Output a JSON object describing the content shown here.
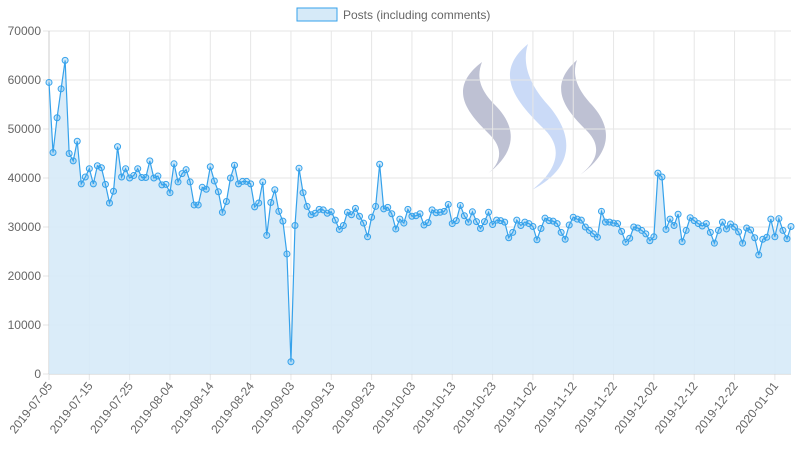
{
  "chart_data": {
    "type": "area",
    "legend": {
      "position": "top",
      "label": "Posts (including comments)"
    },
    "colors": {
      "line": "#36a2eb",
      "fill": "#d6eaf8",
      "grid": "#e6e6e6",
      "axis_text": "#666666"
    },
    "grid": true,
    "watermark": "steem-logo",
    "ylim": [
      0,
      70000
    ],
    "y_ticks": [
      "0",
      "10000",
      "20000",
      "30000",
      "40000",
      "50000",
      "60000",
      "70000"
    ],
    "x_start": "2019-07-05",
    "x_ticks": [
      "2019-07-05",
      "2019-07-15",
      "2019-07-25",
      "2019-08-04",
      "2019-08-14",
      "2019-08-24",
      "2019-09-03",
      "2019-09-13",
      "2019-09-23",
      "2019-10-03",
      "2019-10-13",
      "2019-10-23",
      "2019-11-02",
      "2019-11-12",
      "2019-11-22",
      "2019-12-02",
      "2019-12-12",
      "2019-12-22",
      "2020-01-01"
    ],
    "series": [
      {
        "name": "Posts (including comments)",
        "values": [
          59500,
          45200,
          52300,
          58200,
          64000,
          45000,
          43500,
          47500,
          38800,
          40200,
          41900,
          38800,
          42500,
          42100,
          38700,
          34900,
          37300,
          46400,
          40200,
          41900,
          40000,
          40500,
          41900,
          40100,
          40100,
          43500,
          40000,
          40400,
          38600,
          38700,
          37000,
          42900,
          39200,
          40900,
          41700,
          39200,
          34500,
          34500,
          38100,
          37700,
          42300,
          39400,
          37200,
          33000,
          35200,
          40000,
          42600,
          38800,
          39300,
          39300,
          38800,
          34100,
          34900,
          39200,
          28300,
          35000,
          37600,
          33200,
          31200,
          24500,
          2500,
          30300,
          42000,
          37000,
          34200,
          32500,
          32800,
          33600,
          33500,
          32800,
          33100,
          31400,
          29500,
          30300,
          33000,
          32500,
          33800,
          32200,
          30800,
          28000,
          32000,
          34200,
          42800,
          33700,
          34000,
          32700,
          29600,
          31600,
          30800,
          33600,
          32200,
          32300,
          32700,
          30400,
          30900,
          33500,
          32900,
          33000,
          33200,
          34600,
          30700,
          31300,
          34400,
          32300,
          31000,
          33100,
          31100,
          29700,
          31100,
          33000,
          30500,
          31400,
          31300,
          31000,
          27800,
          28900,
          31400,
          30300,
          31000,
          30700,
          30100,
          27400,
          29700,
          31800,
          31300,
          31200,
          30700,
          28900,
          27500,
          30400,
          32000,
          31600,
          31400,
          30000,
          29300,
          28600,
          27900,
          33200,
          31000,
          31000,
          30800,
          30700,
          29100,
          26900,
          27700,
          30000,
          29800,
          29300,
          28600,
          27200,
          28000,
          41000,
          40200,
          29500,
          31600,
          30300,
          32600,
          27000,
          29300,
          31900,
          31300,
          30700,
          30200,
          30700,
          28900,
          26700,
          29300,
          31000,
          29600,
          30600,
          30000,
          29000,
          26700,
          29800,
          29400,
          27800,
          24300,
          27500,
          27900,
          31600,
          28000,
          31700,
          29300,
          27600,
          30100
        ]
      }
    ]
  }
}
